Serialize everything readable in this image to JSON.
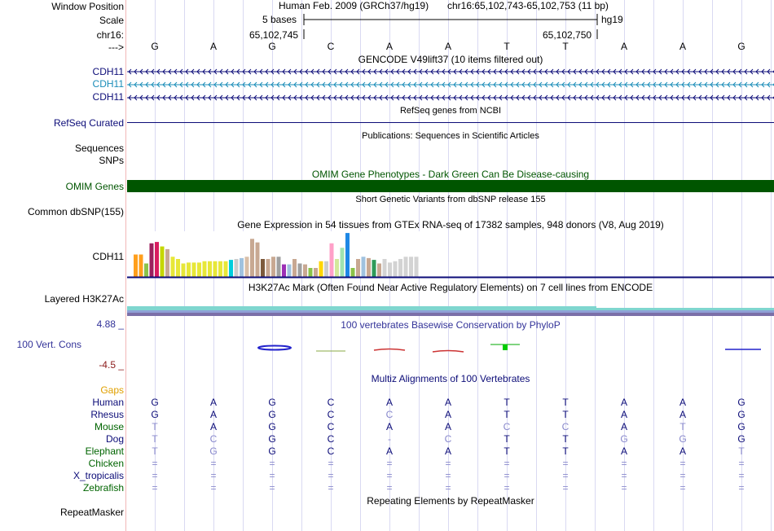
{
  "header": {
    "window_position_label": "Window Position",
    "scale_label": "Scale",
    "chrom_label": "chr16:",
    "arrow_label": "--->",
    "assembly": "Human Feb. 2009 (GRCh37/hg19)",
    "position": "chr16:65,102,743-65,102,753 (11 bp)",
    "scale_text": "5 bases",
    "db": "hg19",
    "coord_left": "65,102,745",
    "coord_right": "65,102,750"
  },
  "sequence": [
    "G",
    "A",
    "G",
    "C",
    "A",
    "A",
    "T",
    "T",
    "A",
    "A",
    "G"
  ],
  "gencode": {
    "title": "GENCODE V49lift37 (10 items filtered out)",
    "items": [
      {
        "name": "CDH11",
        "color": "#0c0c78"
      },
      {
        "name": "CDH11",
        "color": "#1a8cb8"
      },
      {
        "name": "CDH11",
        "color": "#0c0c78"
      }
    ]
  },
  "refseq": {
    "title": "RefSeq genes from NCBI",
    "label": "RefSeq Curated"
  },
  "publications": {
    "title": "Publications: Sequences in Scientific Articles",
    "label1": "Sequences",
    "label2": "SNPs"
  },
  "omim": {
    "title": "OMIM Gene Phenotypes - Dark Green Can Be Disease-causing",
    "label": "OMIM Genes",
    "color": "#005500"
  },
  "dbsnp": {
    "title": "Short Genetic Variants from dbSNP release 155",
    "label": "Common dbSNP(155)"
  },
  "gtex": {
    "title": "Gene Expression in 54 tissues from GTEx RNA-seq of 17382 samples, 948 donors (V8, Aug 2019)",
    "label": "CDH11",
    "chart_data": {
      "type": "bar",
      "title": "Gene Expression in 54 tissues from GTEx RNA-seq",
      "ylim": [
        0,
        1
      ],
      "values": [
        0.5,
        0.5,
        0.3,
        0.75,
        0.78,
        0.68,
        0.62,
        0.45,
        0.4,
        0.3,
        0.32,
        0.32,
        0.32,
        0.35,
        0.35,
        0.35,
        0.35,
        0.35,
        0.38,
        0.4,
        0.42,
        0.45,
        0.85,
        0.77,
        0.4,
        0.4,
        0.45,
        0.45,
        0.28,
        0.28,
        0.4,
        0.3,
        0.28,
        0.2,
        0.2,
        0.35,
        0.35,
        0.75,
        0.4,
        0.65,
        0.98,
        0.2,
        0.4,
        0.45,
        0.42,
        0.38,
        0.3,
        0.4,
        0.32,
        0.35,
        0.4,
        0.45,
        0.45,
        0.45
      ],
      "colors": [
        "#ff9f1c",
        "#ff9f1c",
        "#8bc34a",
        "#9c1f5e",
        "#d81b60",
        "#c5d700",
        "#c8a892",
        "#e7e738",
        "#e7e738",
        "#e7e738",
        "#e7e738",
        "#e7e738",
        "#e7e738",
        "#e7e738",
        "#e7e738",
        "#e7e738",
        "#e7e738",
        "#e7e738",
        "#00cddc",
        "#cccccc",
        "#a0c2df",
        "#d9bfa8",
        "#c8a892",
        "#c8a892",
        "#7d5a3c",
        "#c8a892",
        "#c8a892",
        "#a0a0a0",
        "#9c30b5",
        "#a0c2df",
        "#c8a892",
        "#a0a0a0",
        "#c8a892",
        "#8bc34a",
        "#c8a892",
        "#ffd600",
        "#cccccc",
        "#ffa0c8",
        "#d3e89b",
        "#a0e3b0",
        "#1e88e5",
        "#8bc34a",
        "#c8a892",
        "#a0c2df",
        "#c8a892",
        "#2e9b5a",
        "#c8a892",
        "#d3d3d3",
        "#d3d3d3",
        "#d3d3d3",
        "#d3d3d3",
        "#d3d3d3",
        "#d3d3d3",
        "#d3d3d3"
      ]
    }
  },
  "h3k27ac": {
    "title": "H3K27Ac Mark (Often Found Near Active Regulatory Elements) on 7 cell lines from ENCODE",
    "label": "Layered H3K27Ac"
  },
  "phylop": {
    "title": "100 vertebrates Basewise Conservation by PhyloP",
    "label": "100 Vert. Cons",
    "ymax": "4.88 _",
    "ymin": "-4.5 _"
  },
  "multiz": {
    "title": "Multiz Alignments of 100 Vertebrates",
    "gaps_label": "Gaps",
    "species": [
      {
        "name": "Human",
        "color": "#0c0c78",
        "bases": [
          "G",
          "A",
          "G",
          "C",
          "A",
          "A",
          "T",
          "T",
          "A",
          "A",
          "G"
        ]
      },
      {
        "name": "Rhesus",
        "color": "#0c0c78",
        "bases": [
          "G",
          "A",
          "G",
          "C",
          "C",
          "A",
          "T",
          "T",
          "A",
          "A",
          "G"
        ]
      },
      {
        "name": "Mouse",
        "color": "#006400",
        "bases": [
          "T",
          "A",
          "G",
          "C",
          "A",
          "A",
          "C",
          "C",
          "A",
          "T",
          "G"
        ]
      },
      {
        "name": "Dog",
        "color": "#0c0c78",
        "bases": [
          "T",
          "C",
          "G",
          "C",
          "-",
          "C",
          "T",
          "T",
          "G",
          "G",
          "G"
        ]
      },
      {
        "name": "Elephant",
        "color": "#006400",
        "bases": [
          "T",
          "G",
          "G",
          "C",
          "A",
          "A",
          "T",
          "T",
          "A",
          "A",
          "T"
        ]
      },
      {
        "name": "Chicken",
        "color": "#006400",
        "bases": [
          "=",
          "=",
          "=",
          "=",
          "=",
          "=",
          "=",
          "=",
          "=",
          "=",
          "="
        ]
      },
      {
        "name": "X_tropicalis",
        "color": "#0c0c78",
        "bases": [
          "=",
          "=",
          "=",
          "=",
          "=",
          "=",
          "=",
          "=",
          "=",
          "=",
          "="
        ]
      },
      {
        "name": "Zebrafish",
        "color": "#006400",
        "bases": [
          "=",
          "=",
          "=",
          "=",
          "=",
          "=",
          "=",
          "=",
          "=",
          "=",
          "="
        ]
      }
    ]
  },
  "repeatmasker": {
    "title": "Repeating Elements by RepeatMasker",
    "label": "RepeatMasker"
  }
}
